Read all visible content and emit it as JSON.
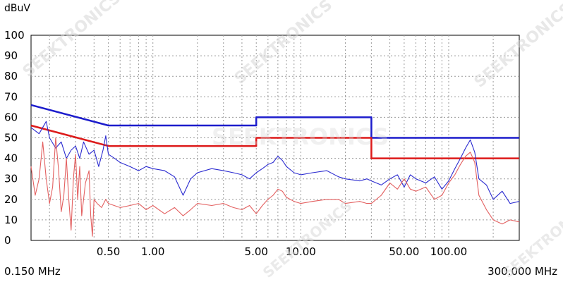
{
  "watermark": "SEEKTRONICS",
  "chart_data": {
    "type": "line",
    "ylabel": "dBuV",
    "ylim": [
      0,
      100
    ],
    "y_ticks": [
      0,
      10,
      20,
      30,
      40,
      50,
      60,
      70,
      80,
      90,
      100
    ],
    "x_scale": "log",
    "xlim": [
      0.15,
      300
    ],
    "x_tick_labels": [
      {
        "value": 0.5,
        "label": "0.50"
      },
      {
        "value": 1,
        "label": "1.00"
      },
      {
        "value": 5,
        "label": "5.00"
      },
      {
        "value": 10,
        "label": "10.00"
      },
      {
        "value": 50,
        "label": "50.00"
      },
      {
        "value": 100,
        "label": "100.00"
      }
    ],
    "x_start_label": "0.150 MHz",
    "x_end_label": "300.000 MHz",
    "grid": true,
    "series": [
      {
        "color": "#1c1ccc",
        "style": "limit",
        "points": [
          [
            0.15,
            66
          ],
          [
            0.5,
            56
          ],
          [
            5,
            56
          ],
          [
            5,
            60
          ],
          [
            30,
            60
          ],
          [
            30,
            50
          ],
          [
            300,
            50
          ]
        ]
      },
      {
        "color": "#dd1a1a",
        "style": "limit",
        "points": [
          [
            0.15,
            56
          ],
          [
            0.5,
            46
          ],
          [
            5,
            46
          ],
          [
            5,
            50
          ],
          [
            30,
            50
          ],
          [
            30,
            40
          ],
          [
            300,
            40
          ]
        ]
      },
      {
        "color": "#2a2ad0",
        "style": "trace",
        "points": [
          [
            0.15,
            55
          ],
          [
            0.17,
            52
          ],
          [
            0.19,
            58
          ],
          [
            0.2,
            50
          ],
          [
            0.22,
            45
          ],
          [
            0.24,
            48
          ],
          [
            0.26,
            40
          ],
          [
            0.28,
            44
          ],
          [
            0.3,
            46
          ],
          [
            0.32,
            40
          ],
          [
            0.34,
            48
          ],
          [
            0.37,
            42
          ],
          [
            0.4,
            44
          ],
          [
            0.43,
            36
          ],
          [
            0.46,
            44
          ],
          [
            0.48,
            51
          ],
          [
            0.5,
            42
          ],
          [
            0.55,
            40
          ],
          [
            0.6,
            38
          ],
          [
            0.7,
            36
          ],
          [
            0.8,
            34
          ],
          [
            0.9,
            36
          ],
          [
            1,
            35
          ],
          [
            1.2,
            34
          ],
          [
            1.4,
            31
          ],
          [
            1.6,
            22
          ],
          [
            1.8,
            30
          ],
          [
            2,
            33
          ],
          [
            2.5,
            35
          ],
          [
            3,
            34
          ],
          [
            3.5,
            33
          ],
          [
            4,
            32
          ],
          [
            4.5,
            30
          ],
          [
            5,
            33
          ],
          [
            5.5,
            35
          ],
          [
            6,
            37
          ],
          [
            6.5,
            38
          ],
          [
            7,
            41
          ],
          [
            7.5,
            39
          ],
          [
            8,
            36
          ],
          [
            9,
            33
          ],
          [
            10,
            32
          ],
          [
            12,
            33
          ],
          [
            15,
            34
          ],
          [
            18,
            31
          ],
          [
            20,
            30
          ],
          [
            25,
            29
          ],
          [
            28,
            30
          ],
          [
            30,
            29
          ],
          [
            35,
            27
          ],
          [
            40,
            30
          ],
          [
            45,
            32
          ],
          [
            50,
            26
          ],
          [
            55,
            32
          ],
          [
            60,
            30
          ],
          [
            70,
            28
          ],
          [
            80,
            31
          ],
          [
            90,
            25
          ],
          [
            100,
            29
          ],
          [
            110,
            35
          ],
          [
            120,
            40
          ],
          [
            130,
            45
          ],
          [
            140,
            49
          ],
          [
            150,
            43
          ],
          [
            160,
            30
          ],
          [
            180,
            27
          ],
          [
            200,
            20
          ],
          [
            230,
            24
          ],
          [
            260,
            18
          ],
          [
            300,
            19
          ]
        ]
      },
      {
        "color": "#e36060",
        "style": "trace",
        "points": [
          [
            0.15,
            36
          ],
          [
            0.16,
            22
          ],
          [
            0.17,
            30
          ],
          [
            0.18,
            48
          ],
          [
            0.19,
            30
          ],
          [
            0.2,
            18
          ],
          [
            0.21,
            26
          ],
          [
            0.22,
            50
          ],
          [
            0.23,
            35
          ],
          [
            0.24,
            14
          ],
          [
            0.25,
            22
          ],
          [
            0.26,
            40
          ],
          [
            0.27,
            20
          ],
          [
            0.28,
            5
          ],
          [
            0.29,
            30
          ],
          [
            0.3,
            42
          ],
          [
            0.31,
            20
          ],
          [
            0.32,
            36
          ],
          [
            0.33,
            12
          ],
          [
            0.35,
            28
          ],
          [
            0.37,
            34
          ],
          [
            0.38,
            12
          ],
          [
            0.39,
            2
          ],
          [
            0.4,
            20
          ],
          [
            0.42,
            18
          ],
          [
            0.45,
            16
          ],
          [
            0.48,
            20
          ],
          [
            0.5,
            18
          ],
          [
            0.6,
            16
          ],
          [
            0.7,
            17
          ],
          [
            0.8,
            18
          ],
          [
            0.9,
            15
          ],
          [
            1,
            17
          ],
          [
            1.2,
            13
          ],
          [
            1.4,
            16
          ],
          [
            1.6,
            12
          ],
          [
            1.8,
            15
          ],
          [
            2,
            18
          ],
          [
            2.5,
            17
          ],
          [
            3,
            18
          ],
          [
            3.5,
            16
          ],
          [
            4,
            15
          ],
          [
            4.5,
            17
          ],
          [
            5,
            13
          ],
          [
            5.5,
            17
          ],
          [
            6,
            20
          ],
          [
            6.5,
            22
          ],
          [
            7,
            25
          ],
          [
            7.5,
            24
          ],
          [
            8,
            21
          ],
          [
            9,
            19
          ],
          [
            10,
            18
          ],
          [
            12,
            19
          ],
          [
            15,
            20
          ],
          [
            18,
            20
          ],
          [
            20,
            18
          ],
          [
            25,
            19
          ],
          [
            28,
            18
          ],
          [
            30,
            18
          ],
          [
            35,
            22
          ],
          [
            40,
            28
          ],
          [
            45,
            25
          ],
          [
            50,
            30
          ],
          [
            55,
            25
          ],
          [
            60,
            24
          ],
          [
            70,
            26
          ],
          [
            80,
            20
          ],
          [
            90,
            22
          ],
          [
            100,
            28
          ],
          [
            110,
            32
          ],
          [
            120,
            37
          ],
          [
            130,
            41
          ],
          [
            140,
            43
          ],
          [
            150,
            38
          ],
          [
            160,
            22
          ],
          [
            180,
            15
          ],
          [
            200,
            10
          ],
          [
            230,
            8
          ],
          [
            260,
            10
          ],
          [
            300,
            9
          ]
        ]
      }
    ]
  }
}
